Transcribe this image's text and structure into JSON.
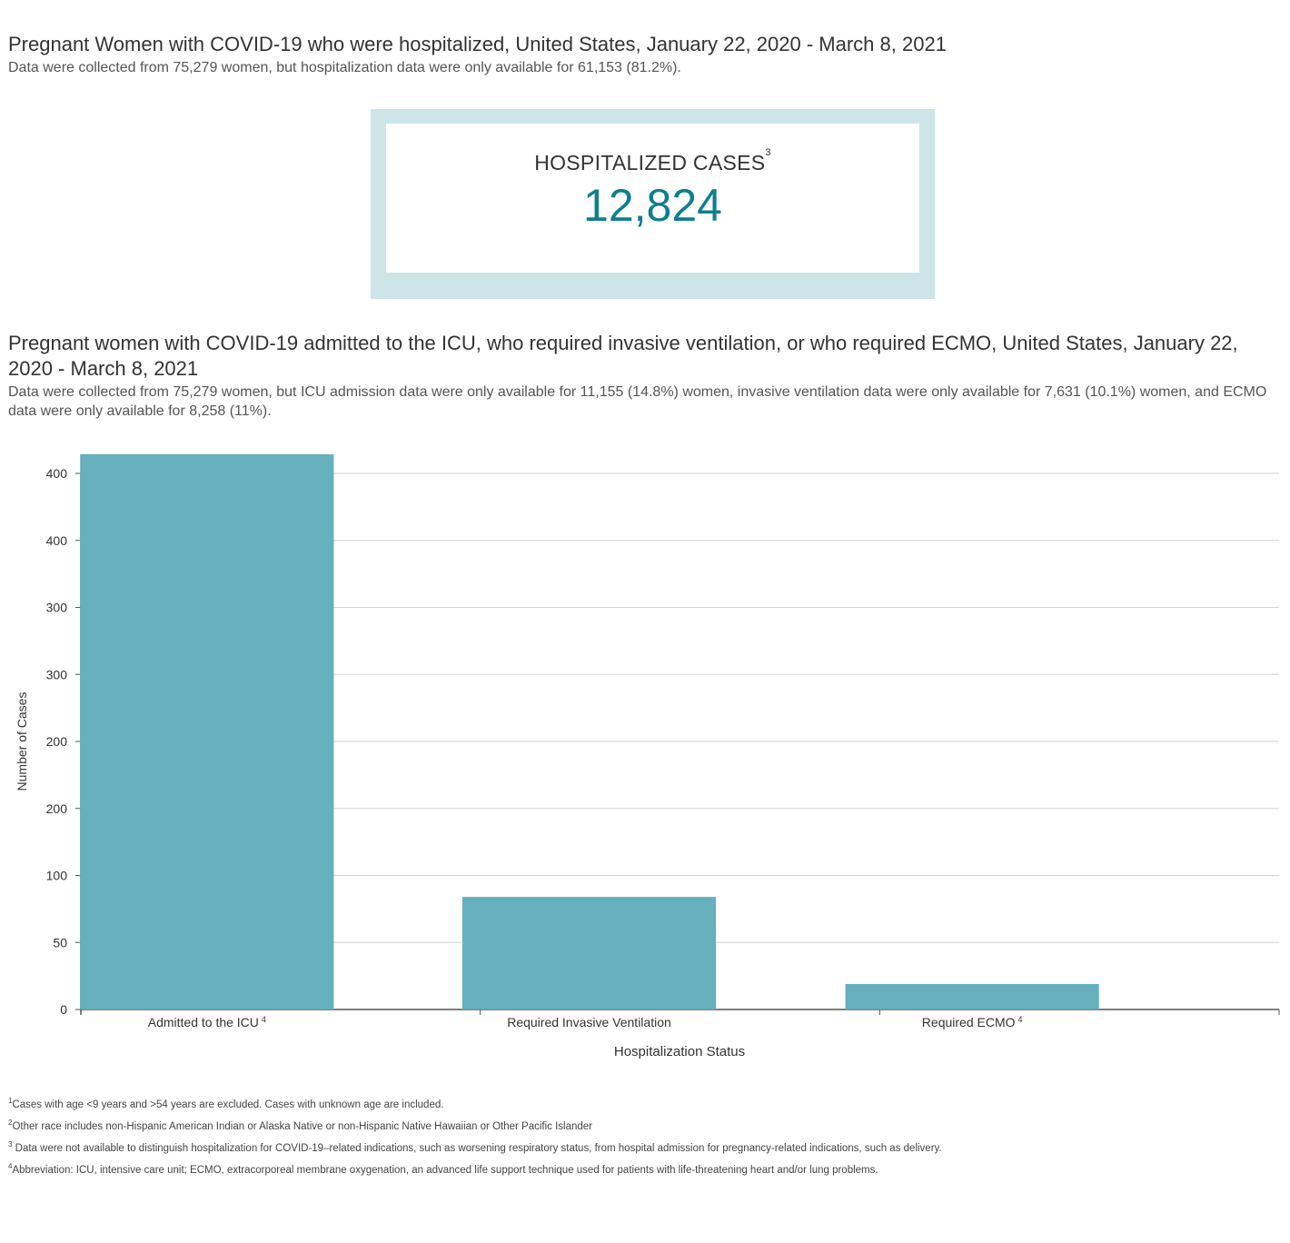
{
  "header": {
    "title": "Pregnant Women with COVID-19 who were hospitalized, United States, January 22, 2020 - March 8, 2021",
    "subtitle": "Data were collected from 75,279 women, but hospitalization data were only available for 61,153 (81.2%)."
  },
  "kpi": {
    "label": "HOSPITALIZED CASES",
    "label_sup": "3",
    "value": "12,824",
    "border_color": "#cde5e9",
    "value_color": "#0e7f8c"
  },
  "section2": {
    "title": "Pregnant women with COVID-19 admitted to the ICU, who required invasive ventilation, or who required ECMO, United States, January 22, 2020 - March 8, 2021",
    "subtitle": "Data were collected from 75,279 women, but ICU admission data were only available for 11,155 (14.8%) women, invasive ventilation data were only available for 7,631 (10.1%) women, and ECMO data were only available for 8,258 (11%)."
  },
  "chart_data": {
    "type": "bar",
    "categories": [
      "Admitted to the ICU",
      "Required Invasive Ventilation",
      "Required ECMO"
    ],
    "category_sups": [
      "4",
      "",
      "4"
    ],
    "values": [
      420,
      84,
      19
    ],
    "xlabel": "Hospitalization Status",
    "ylabel": "Number of Cases",
    "ylim": [
      0,
      400
    ],
    "ytick_labels": [
      "0",
      "50",
      "100",
      "200",
      "200",
      "300",
      "300",
      "400",
      "400"
    ],
    "grid": true,
    "bar_color": "#66afbd"
  },
  "footnotes": [
    {
      "sup": "1",
      "text": "Cases with age <9 years and >54 years are excluded. Cases with unknown age are included."
    },
    {
      "sup": "2",
      "text": "Other race includes non-Hispanic American Indian or Alaska Native or non-Hispanic Native Hawaiian or Other Pacific Islander"
    },
    {
      "sup": "3",
      "text": " Data were not available to distinguish hospitalization for COVID-19–related indications, such as worsening respiratory status, from hospital admission for pregnancy-related indications, such as delivery."
    },
    {
      "sup": "4",
      "text": "Abbreviation: ICU, intensive care unit; ECMO, extracorporeal membrane oxygenation, an advanced life support technique used for patients with life-threatening heart and/or lung problems."
    }
  ]
}
